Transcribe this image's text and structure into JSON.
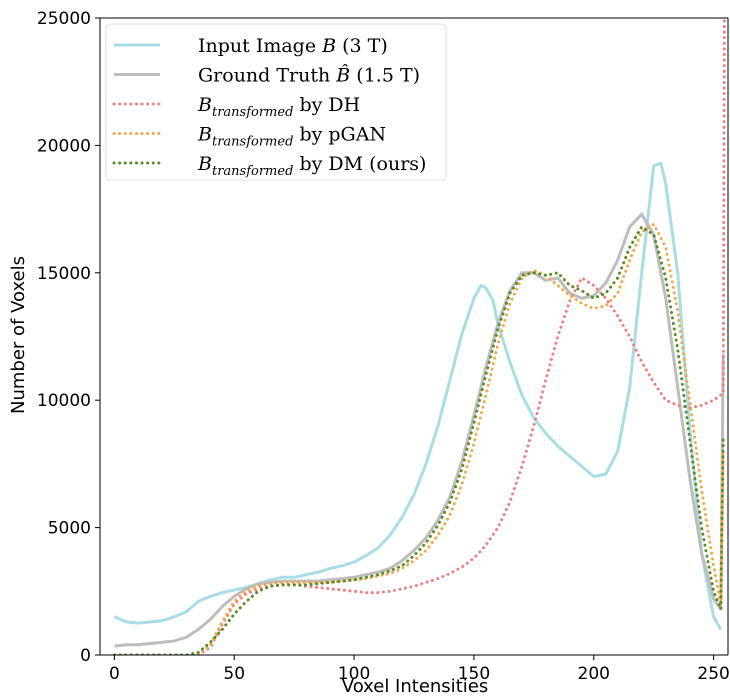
{
  "chart_data": {
    "type": "line",
    "title": "",
    "xlabel": "Voxel Intensities",
    "ylabel": "Number of Voxels",
    "xlim": [
      -6,
      256
    ],
    "ylim": [
      0,
      25000
    ],
    "xticks": [
      "0",
      "50",
      "100",
      "150",
      "200",
      "250"
    ],
    "yticks": [
      "0",
      "5000",
      "10000",
      "15000",
      "20000",
      "25000"
    ],
    "grid": false,
    "legend_position": "top-left",
    "series": [
      {
        "name": "Input Image B (3 T)",
        "legend": {
          "prefix": "Input Image ",
          "var": "B",
          "suffix": " (3 T)"
        },
        "color": "#a8dde3",
        "style": "solid",
        "x": [
          0,
          5,
          10,
          15,
          20,
          25,
          30,
          35,
          40,
          45,
          50,
          55,
          60,
          65,
          70,
          75,
          80,
          85,
          90,
          95,
          100,
          105,
          110,
          115,
          120,
          125,
          130,
          135,
          140,
          145,
          150,
          153,
          155,
          158,
          160,
          165,
          170,
          175,
          180,
          185,
          190,
          195,
          200,
          205,
          210,
          215,
          220,
          225,
          228,
          230,
          235,
          240,
          245,
          250,
          253
        ],
        "y": [
          1500,
          1300,
          1250,
          1300,
          1350,
          1500,
          1700,
          2100,
          2300,
          2450,
          2550,
          2650,
          2800,
          2950,
          3050,
          3050,
          3150,
          3250,
          3400,
          3500,
          3650,
          3900,
          4200,
          4700,
          5400,
          6300,
          7500,
          9000,
          10800,
          12600,
          14000,
          14500,
          14400,
          13900,
          13000,
          11500,
          10200,
          9300,
          8700,
          8200,
          7800,
          7400,
          7000,
          7100,
          8000,
          10500,
          15000,
          19200,
          19300,
          18500,
          15000,
          9000,
          4000,
          1500,
          1000
        ]
      },
      {
        "name": "Ground Truth B̂ (1.5 T)",
        "legend": {
          "prefix": "Ground Truth ",
          "var": "B̂",
          "suffix": " (1.5 T)"
        },
        "color": "#bdbdbd",
        "style": "solid",
        "x": [
          0,
          5,
          10,
          15,
          20,
          25,
          30,
          35,
          40,
          45,
          50,
          55,
          60,
          65,
          70,
          75,
          80,
          85,
          90,
          95,
          100,
          105,
          110,
          115,
          120,
          125,
          130,
          135,
          140,
          145,
          150,
          155,
          160,
          165,
          170,
          175,
          180,
          185,
          190,
          195,
          200,
          205,
          210,
          215,
          220,
          225,
          230,
          235,
          240,
          245,
          250,
          253,
          254
        ],
        "y": [
          350,
          400,
          400,
          450,
          500,
          550,
          700,
          1000,
          1400,
          1900,
          2300,
          2600,
          2800,
          2850,
          2900,
          2900,
          2900,
          2900,
          2950,
          3000,
          3050,
          3150,
          3250,
          3400,
          3700,
          4100,
          4600,
          5300,
          6200,
          7600,
          9400,
          11300,
          13000,
          14300,
          15000,
          15000,
          14700,
          14800,
          14200,
          14000,
          14100,
          14600,
          15500,
          16800,
          17300,
          16500,
          14000,
          10500,
          7000,
          4000,
          2200,
          1800,
          11800
        ]
      },
      {
        "name": "B_transformed by DH",
        "legend": {
          "prefix": "",
          "var": "B",
          "sub": "transformed",
          "suffix": " by DH"
        },
        "color": "#f08080",
        "style": "dotted",
        "x": [
          0,
          5,
          10,
          15,
          20,
          25,
          30,
          35,
          40,
          45,
          50,
          55,
          60,
          65,
          70,
          75,
          80,
          85,
          90,
          95,
          100,
          105,
          110,
          115,
          120,
          125,
          130,
          135,
          140,
          145,
          150,
          155,
          160,
          165,
          170,
          175,
          180,
          185,
          190,
          195,
          200,
          205,
          210,
          215,
          220,
          225,
          230,
          235,
          240,
          245,
          250,
          253,
          254,
          254.5
        ],
        "y": [
          0,
          0,
          0,
          0,
          0,
          0,
          0,
          0,
          300,
          1200,
          2000,
          2400,
          2600,
          2700,
          2750,
          2750,
          2700,
          2650,
          2600,
          2550,
          2500,
          2450,
          2450,
          2500,
          2600,
          2700,
          2850,
          3000,
          3200,
          3450,
          3800,
          4300,
          5000,
          6000,
          7400,
          9000,
          10800,
          12500,
          13900,
          14800,
          14500,
          14000,
          13300,
          12500,
          11500,
          10700,
          10000,
          9800,
          9700,
          9800,
          10000,
          10200,
          10300,
          25000
        ]
      },
      {
        "name": "B_transformed by pGAN",
        "legend": {
          "prefix": "",
          "var": "B",
          "sub": "transformed",
          "suffix": " by pGAN"
        },
        "color": "#f5a64a",
        "style": "dotted",
        "x": [
          0,
          5,
          10,
          15,
          20,
          25,
          30,
          35,
          40,
          45,
          50,
          55,
          60,
          65,
          70,
          75,
          80,
          85,
          90,
          95,
          100,
          105,
          110,
          115,
          120,
          125,
          130,
          135,
          140,
          145,
          150,
          155,
          160,
          165,
          170,
          175,
          180,
          185,
          190,
          195,
          200,
          205,
          210,
          215,
          220,
          225,
          230,
          235,
          240,
          245,
          250,
          253,
          254
        ],
        "y": [
          0,
          0,
          0,
          0,
          0,
          0,
          0,
          0,
          400,
          1300,
          2100,
          2500,
          2700,
          2800,
          2850,
          2850,
          2850,
          2850,
          2850,
          2900,
          2950,
          3000,
          3100,
          3200,
          3400,
          3700,
          4100,
          4700,
          5500,
          6700,
          8300,
          10200,
          12200,
          13800,
          14800,
          15100,
          14900,
          14500,
          14100,
          13800,
          13600,
          13700,
          14200,
          15500,
          16600,
          16900,
          16000,
          13500,
          10000,
          6500,
          3500,
          2000,
          8000
        ]
      },
      {
        "name": "B_transformed by DM (ours)",
        "legend": {
          "prefix": "",
          "var": "B",
          "sub": "transformed",
          "suffix": " by DM (ours)"
        },
        "color": "#5a8a2a",
        "style": "dotted",
        "x": [
          0,
          5,
          10,
          15,
          20,
          25,
          30,
          35,
          40,
          45,
          50,
          55,
          60,
          65,
          70,
          75,
          80,
          85,
          90,
          95,
          100,
          105,
          110,
          115,
          120,
          125,
          130,
          135,
          140,
          145,
          150,
          155,
          160,
          165,
          170,
          175,
          180,
          185,
          190,
          195,
          200,
          205,
          210,
          215,
          220,
          225,
          230,
          235,
          240,
          245,
          250,
          253,
          254
        ],
        "y": [
          0,
          0,
          0,
          0,
          0,
          0,
          0,
          100,
          500,
          1000,
          1600,
          2100,
          2500,
          2700,
          2750,
          2750,
          2750,
          2800,
          2850,
          2900,
          2950,
          3050,
          3150,
          3300,
          3500,
          3900,
          4400,
          5100,
          6000,
          7300,
          9100,
          11000,
          12800,
          14200,
          14900,
          15000,
          14900,
          15000,
          14500,
          14300,
          14000,
          14200,
          14800,
          16000,
          16800,
          16500,
          14800,
          12000,
          8500,
          5000,
          2500,
          1800,
          8500
        ]
      }
    ]
  }
}
